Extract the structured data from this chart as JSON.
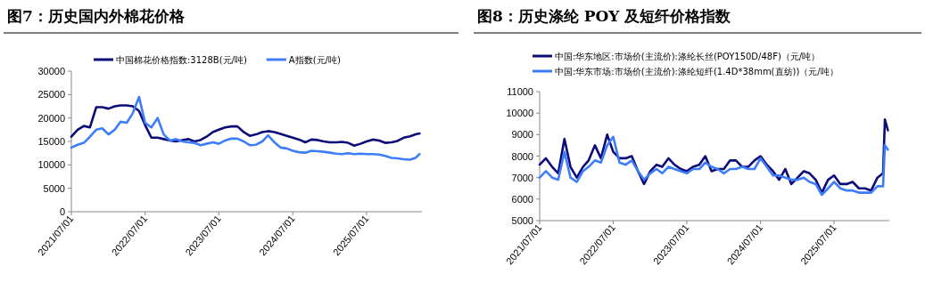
{
  "chart_data": [
    {
      "type": "line",
      "title": "图7：历史国内外棉花价格",
      "legend": "top",
      "x": [
        "2021-07-01",
        "2021-08-01",
        "2021-09-01",
        "2021-10-01",
        "2021-11-01",
        "2021-12-01",
        "2022-01-01",
        "2022-02-01",
        "2022-03-01",
        "2022-04-01",
        "2022-05-01",
        "2022-06-01",
        "2022-07-01",
        "2022-08-01",
        "2022-09-01",
        "2022-10-01",
        "2022-11-01",
        "2022-12-01",
        "2023-01-01",
        "2023-02-01",
        "2023-03-01",
        "2023-04-01",
        "2023-05-01",
        "2023-06-01",
        "2023-07-01",
        "2023-08-01",
        "2023-09-01",
        "2023-10-01",
        "2023-11-01",
        "2023-12-01",
        "2024-01-01",
        "2024-02-01",
        "2024-03-01",
        "2024-04-01",
        "2024-05-01",
        "2024-06-01",
        "2024-07-01",
        "2024-08-01",
        "2024-09-01",
        "2024-10-01",
        "2024-11-01",
        "2024-12-01",
        "2025-01-01",
        "2025-02-01",
        "2025-03-01",
        "2025-04-01",
        "2025-05-01",
        "2025-06-01",
        "2025-07-01",
        "2025-08-01",
        "2025-09-01",
        "2025-10-01",
        "2025-11-01",
        "2025-12-01",
        "2026-01-01",
        "2026-02-01",
        "2026-03-01",
        "2026-03-20"
      ],
      "series": [
        {
          "name": "中国棉花价格指数:3128B(元/吨)",
          "color": "#0b0b7a",
          "values": [
            16000,
            17500,
            18300,
            18000,
            22300,
            22300,
            22000,
            22500,
            22700,
            22700,
            22500,
            21500,
            18500,
            15800,
            15800,
            15500,
            15200,
            15000,
            15300,
            15500,
            15000,
            15300,
            16000,
            17000,
            17500,
            18000,
            18200,
            18200,
            17000,
            16200,
            16500,
            17000,
            17200,
            17000,
            16600,
            16200,
            15800,
            15400,
            14800,
            15400,
            15300,
            15000,
            14800,
            14800,
            14900,
            14700,
            14100,
            14500,
            15000,
            15400,
            15200,
            14700,
            14800,
            15100,
            15800,
            16100,
            16500,
            16700
          ]
        },
        {
          "name": "A指数(元/吨)",
          "color": "#3d7dfa",
          "values": [
            13700,
            14300,
            14700,
            16000,
            17500,
            17800,
            16500,
            17500,
            19200,
            19000,
            21000,
            24500,
            19000,
            18000,
            20000,
            16500,
            15200,
            15500,
            15000,
            14800,
            14700,
            14200,
            14500,
            14800,
            14500,
            15200,
            15600,
            15600,
            15000,
            14200,
            14300,
            15000,
            16300,
            14800,
            13700,
            13500,
            13000,
            12700,
            12600,
            13000,
            12900,
            12800,
            12600,
            12400,
            12300,
            12500,
            12300,
            12400,
            12300,
            12300,
            12200,
            11900,
            11500,
            11400,
            11200,
            11100,
            11500,
            12300
          ]
        }
      ],
      "xlim": [
        "2021-07-01",
        "2026-04-01"
      ],
      "xticks": [
        {
          "value": "2021-07-01",
          "label": "2021/07/01"
        },
        {
          "value": "2022-07-01",
          "label": "2022/07/01"
        },
        {
          "value": "2023-07-01",
          "label": "2023/07/01"
        },
        {
          "value": "2024-07-01",
          "label": "2024/07/01"
        },
        {
          "value": "2025-07-01",
          "label": "2025/07/01"
        }
      ],
      "ylim": [
        0,
        30000
      ],
      "yticks": [
        0,
        5000,
        10000,
        15000,
        20000,
        25000,
        30000
      ]
    },
    {
      "type": "line",
      "title": "图8：历史涤纶 POY 及短纤价格指数",
      "legend": "top",
      "x": [
        "2021-07-01",
        "2021-08-01",
        "2021-09-01",
        "2021-10-01",
        "2021-11-01",
        "2021-12-01",
        "2022-01-01",
        "2022-02-01",
        "2022-03-01",
        "2022-04-01",
        "2022-05-01",
        "2022-06-01",
        "2022-07-01",
        "2022-08-01",
        "2022-09-01",
        "2022-10-01",
        "2022-11-01",
        "2022-12-01",
        "2023-01-01",
        "2023-02-01",
        "2023-03-01",
        "2023-04-01",
        "2023-05-01",
        "2023-06-01",
        "2023-07-01",
        "2023-08-01",
        "2023-09-01",
        "2023-10-01",
        "2023-11-01",
        "2023-12-01",
        "2024-01-01",
        "2024-02-01",
        "2024-03-01",
        "2024-04-01",
        "2024-05-01",
        "2024-06-01",
        "2024-07-01",
        "2024-08-01",
        "2024-09-01",
        "2024-10-01",
        "2024-11-01",
        "2024-12-01",
        "2025-01-01",
        "2025-02-01",
        "2025-03-01",
        "2025-04-01",
        "2025-05-01",
        "2025-06-01",
        "2025-07-01",
        "2025-08-01",
        "2025-09-01",
        "2025-10-01",
        "2025-11-01",
        "2025-12-01",
        "2026-01-01",
        "2026-02-01",
        "2026-03-01",
        "2026-03-10",
        "2026-03-25"
      ],
      "series": [
        {
          "name": "中国:华东地区:市场价(主流价):涤纶长丝(POY150D/48F)（元/吨）",
          "color": "#0b0b7a",
          "values": [
            7600,
            7900,
            7500,
            7200,
            8800,
            7500,
            7000,
            7500,
            7800,
            8500,
            7900,
            9000,
            8200,
            7900,
            7900,
            8000,
            7300,
            6700,
            7300,
            7600,
            7500,
            7900,
            7600,
            7400,
            7300,
            7500,
            7600,
            8000,
            7300,
            7400,
            7400,
            7800,
            7800,
            7500,
            7500,
            7800,
            8000,
            7600,
            7300,
            6900,
            7400,
            6700,
            7000,
            7300,
            7200,
            6900,
            6300,
            6900,
            7100,
            6700,
            6700,
            6800,
            6500,
            6500,
            6400,
            7000,
            7200,
            9700,
            9200
          ]
        },
        {
          "name": "中国:华东市场:市场价(主流价):涤纶短纤(1.4D*38mm(直纺))（元/吨）",
          "color": "#3d7dfa",
          "values": [
            7000,
            7300,
            7000,
            6900,
            8200,
            7000,
            6800,
            7300,
            7500,
            7800,
            7700,
            8500,
            8900,
            7700,
            7600,
            7800,
            7300,
            6900,
            7200,
            7400,
            7200,
            7500,
            7400,
            7300,
            7200,
            7400,
            7400,
            7700,
            7500,
            7400,
            7200,
            7400,
            7400,
            7500,
            7400,
            7400,
            7900,
            7500,
            7100,
            7100,
            7000,
            6900,
            6900,
            7000,
            6800,
            6700,
            6200,
            6500,
            6800,
            6500,
            6400,
            6400,
            6300,
            6300,
            6300,
            6600,
            6600,
            8500,
            8300
          ]
        }
      ],
      "xlim": [
        "2021-07-01",
        "2026-04-01"
      ],
      "xticks": [
        {
          "value": "2021-07-01",
          "label": "2021/07/01"
        },
        {
          "value": "2022-07-01",
          "label": "2022/07/01"
        },
        {
          "value": "2023-07-01",
          "label": "2023/07/01"
        },
        {
          "value": "2024-07-01",
          "label": "2024/07/01"
        },
        {
          "value": "2025-07-01",
          "label": "2025/07/01"
        }
      ],
      "ylim": [
        5000,
        11000
      ],
      "yticks": [
        5000,
        6000,
        7000,
        8000,
        9000,
        10000,
        11000
      ]
    }
  ]
}
